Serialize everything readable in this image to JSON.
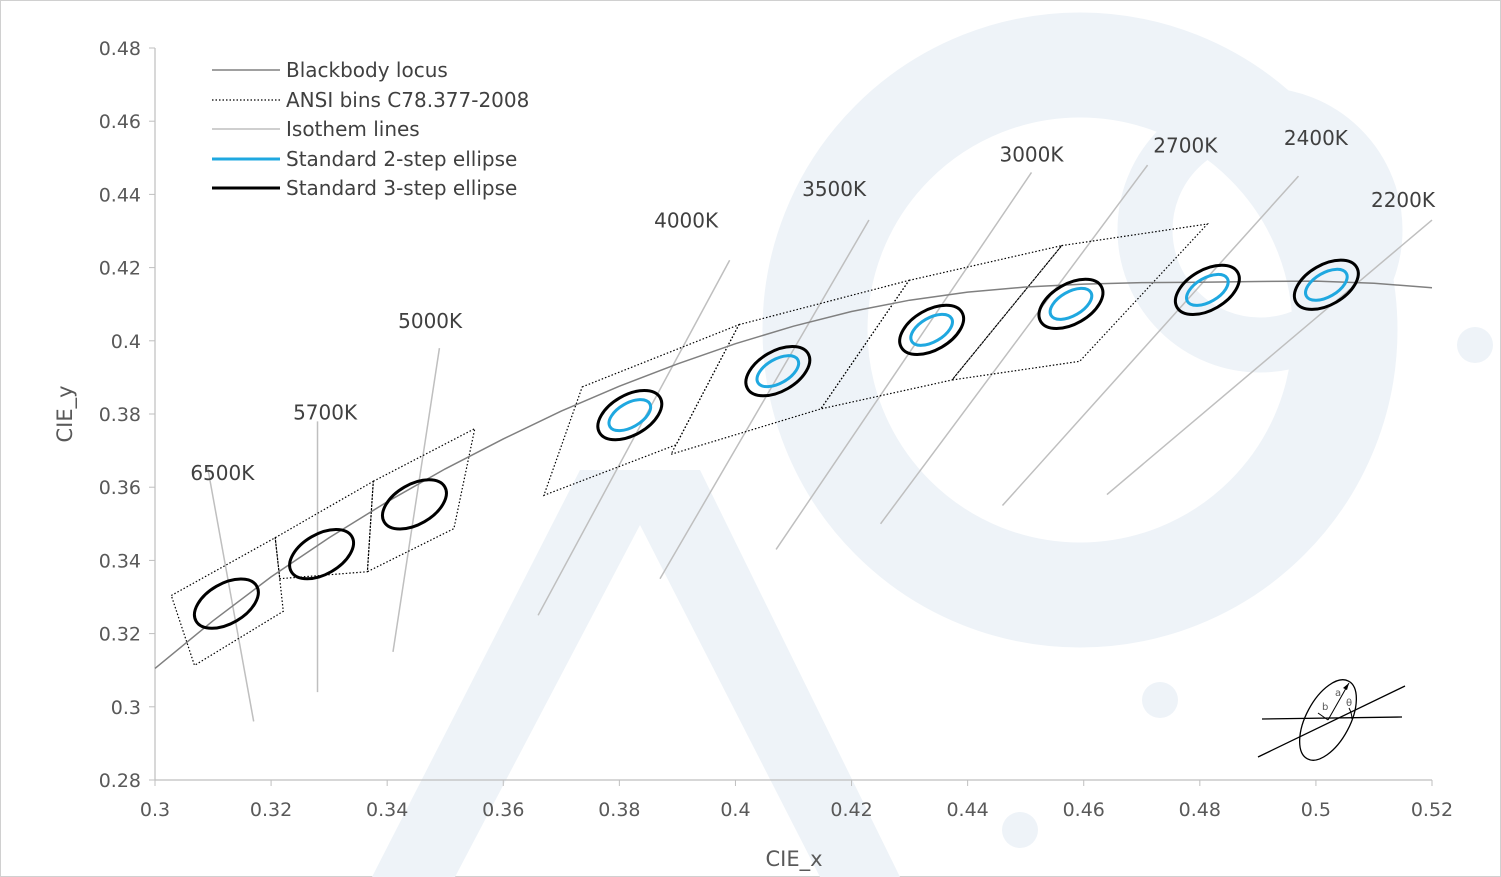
{
  "chart_data": {
    "type": "scatter",
    "xlabel": "CIE_x",
    "ylabel": "CIE_y",
    "xlim": [
      0.3,
      0.52
    ],
    "ylim": [
      0.28,
      0.48
    ],
    "x_ticks": [
      "0.3",
      "0.32",
      "0.34",
      "0.36",
      "0.38",
      "0.4",
      "0.42",
      "0.44",
      "0.46",
      "0.48",
      "0.5",
      "0.52"
    ],
    "y_ticks": [
      "0.28",
      "0.3",
      "0.32",
      "0.34",
      "0.36",
      "0.38",
      "0.4",
      "0.42",
      "0.44",
      "0.46",
      "0.48"
    ],
    "gridlines": false,
    "legend_position": "top-left",
    "legend": [
      {
        "key": "locus",
        "label": "Blackbody locus",
        "color": "#808080",
        "style": "solid"
      },
      {
        "key": "ansi",
        "label": "ANSI bins C78.377-2008",
        "color": "#000000",
        "style": "dotted"
      },
      {
        "key": "iso",
        "label": "Isothem lines",
        "color": "#bfbfbf",
        "style": "solid"
      },
      {
        "key": "two_step",
        "label": "Standard 2-step ellipse",
        "color": "#1fa8e0",
        "style": "solid"
      },
      {
        "key": "three_step",
        "label": "Standard 3-step ellipse",
        "color": "#000000",
        "style": "solid"
      }
    ],
    "blackbody_locus": [
      [
        0.3,
        0.3105
      ],
      [
        0.31,
        0.3235
      ],
      [
        0.32,
        0.3355
      ],
      [
        0.33,
        0.3462
      ],
      [
        0.34,
        0.356
      ],
      [
        0.35,
        0.365
      ],
      [
        0.36,
        0.3732
      ],
      [
        0.37,
        0.3808
      ],
      [
        0.38,
        0.3876
      ],
      [
        0.39,
        0.3937
      ],
      [
        0.4,
        0.3992
      ],
      [
        0.41,
        0.404
      ],
      [
        0.42,
        0.408
      ],
      [
        0.43,
        0.4111
      ],
      [
        0.44,
        0.4133
      ],
      [
        0.45,
        0.4147
      ],
      [
        0.46,
        0.4155
      ],
      [
        0.47,
        0.4159
      ],
      [
        0.48,
        0.416
      ],
      [
        0.49,
        0.4162
      ],
      [
        0.5,
        0.4163
      ],
      [
        0.51,
        0.4157
      ],
      [
        0.52,
        0.4145
      ]
    ],
    "ansi_bins": [
      [
        [
          0.3028,
          0.3304
        ],
        [
          0.3207,
          0.3462
        ],
        [
          0.3221,
          0.3261
        ],
        [
          0.3068,
          0.3113
        ]
      ],
      [
        [
          0.3207,
          0.3462
        ],
        [
          0.3376,
          0.3616
        ],
        [
          0.3366,
          0.3369
        ],
        [
          0.3215,
          0.335
        ]
      ],
      [
        [
          0.3376,
          0.3616
        ],
        [
          0.3551,
          0.376
        ],
        [
          0.3515,
          0.3487
        ],
        [
          0.3366,
          0.3369
        ]
      ],
      [
        [
          0.3736,
          0.3874
        ],
        [
          0.4006,
          0.4044
        ],
        [
          0.3898,
          0.3716
        ],
        [
          0.367,
          0.3578
        ]
      ],
      [
        [
          0.4006,
          0.4044
        ],
        [
          0.4299,
          0.4165
        ],
        [
          0.4147,
          0.3814
        ],
        [
          0.3889,
          0.369
        ]
      ],
      [
        [
          0.4299,
          0.4165
        ],
        [
          0.4562,
          0.426
        ],
        [
          0.4373,
          0.3893
        ],
        [
          0.4147,
          0.3814
        ]
      ],
      [
        [
          0.4562,
          0.426
        ],
        [
          0.4813,
          0.4319
        ],
        [
          0.4593,
          0.3944
        ],
        [
          0.4373,
          0.3893
        ]
      ]
    ],
    "isotherm_lines": [
      {
        "cct": "6500K",
        "from": [
          0.309,
          0.366
        ],
        "to": [
          0.317,
          0.296
        ]
      },
      {
        "cct": "5700K",
        "from": [
          0.328,
          0.378
        ],
        "to": [
          0.328,
          0.304
        ]
      },
      {
        "cct": "5000K",
        "from": [
          0.349,
          0.398
        ],
        "to": [
          0.341,
          0.315
        ]
      },
      {
        "cct": "4000K",
        "from": [
          0.399,
          0.422
        ],
        "to": [
          0.366,
          0.325
        ]
      },
      {
        "cct": "3500K",
        "from": [
          0.423,
          0.433
        ],
        "to": [
          0.387,
          0.335
        ]
      },
      {
        "cct": "3000K",
        "from": [
          0.451,
          0.446
        ],
        "to": [
          0.407,
          0.343
        ]
      },
      {
        "cct": "2700K",
        "from": [
          0.471,
          0.448
        ],
        "to": [
          0.425,
          0.35
        ]
      },
      {
        "cct": "2400K",
        "from": [
          0.497,
          0.445
        ],
        "to": [
          0.446,
          0.355
        ]
      },
      {
        "cct": "2200K",
        "from": [
          0.52,
          0.433
        ],
        "to": [
          0.464,
          0.358
        ]
      }
    ],
    "cct_labels": [
      {
        "text": "6500K",
        "x": 0.3116,
        "y": 0.362
      },
      {
        "text": "5700K",
        "x": 0.3293,
        "y": 0.3785
      },
      {
        "text": "5000K",
        "x": 0.3474,
        "y": 0.4035
      },
      {
        "text": "4000K",
        "x": 0.3915,
        "y": 0.431
      },
      {
        "text": "3500K",
        "x": 0.417,
        "y": 0.4395
      },
      {
        "text": "3000K",
        "x": 0.451,
        "y": 0.449
      },
      {
        "text": "2700K",
        "x": 0.4775,
        "y": 0.4515
      },
      {
        "text": "2400K",
        "x": 0.5,
        "y": 0.4535
      },
      {
        "text": "2200K",
        "x": 0.515,
        "y": 0.4365
      }
    ],
    "ellipses": [
      {
        "cct": "6500K",
        "center": [
          0.3123,
          0.3282
        ],
        "three_step": true,
        "two_step": false
      },
      {
        "cct": "5700K",
        "center": [
          0.3287,
          0.3417
        ],
        "three_step": true,
        "two_step": false
      },
      {
        "cct": "5000K",
        "center": [
          0.3447,
          0.3553
        ],
        "three_step": true,
        "two_step": false
      },
      {
        "cct": "4000K",
        "center": [
          0.3818,
          0.3797
        ],
        "three_step": true,
        "two_step": true
      },
      {
        "cct": "3500K",
        "center": [
          0.4073,
          0.3917
        ],
        "three_step": true,
        "two_step": true
      },
      {
        "cct": "3000K",
        "center": [
          0.4338,
          0.403
        ],
        "three_step": true,
        "two_step": true
      },
      {
        "cct": "2700K",
        "center": [
          0.4578,
          0.4101
        ],
        "three_step": true,
        "two_step": true
      },
      {
        "cct": "2400K",
        "center": [
          0.4813,
          0.4139
        ],
        "three_step": true,
        "two_step": true
      },
      {
        "cct": "2200K",
        "center": [
          0.5018,
          0.4153
        ],
        "three_step": true,
        "two_step": true
      }
    ],
    "inset_diagram_labels": [
      "a",
      "b",
      "θ"
    ]
  }
}
